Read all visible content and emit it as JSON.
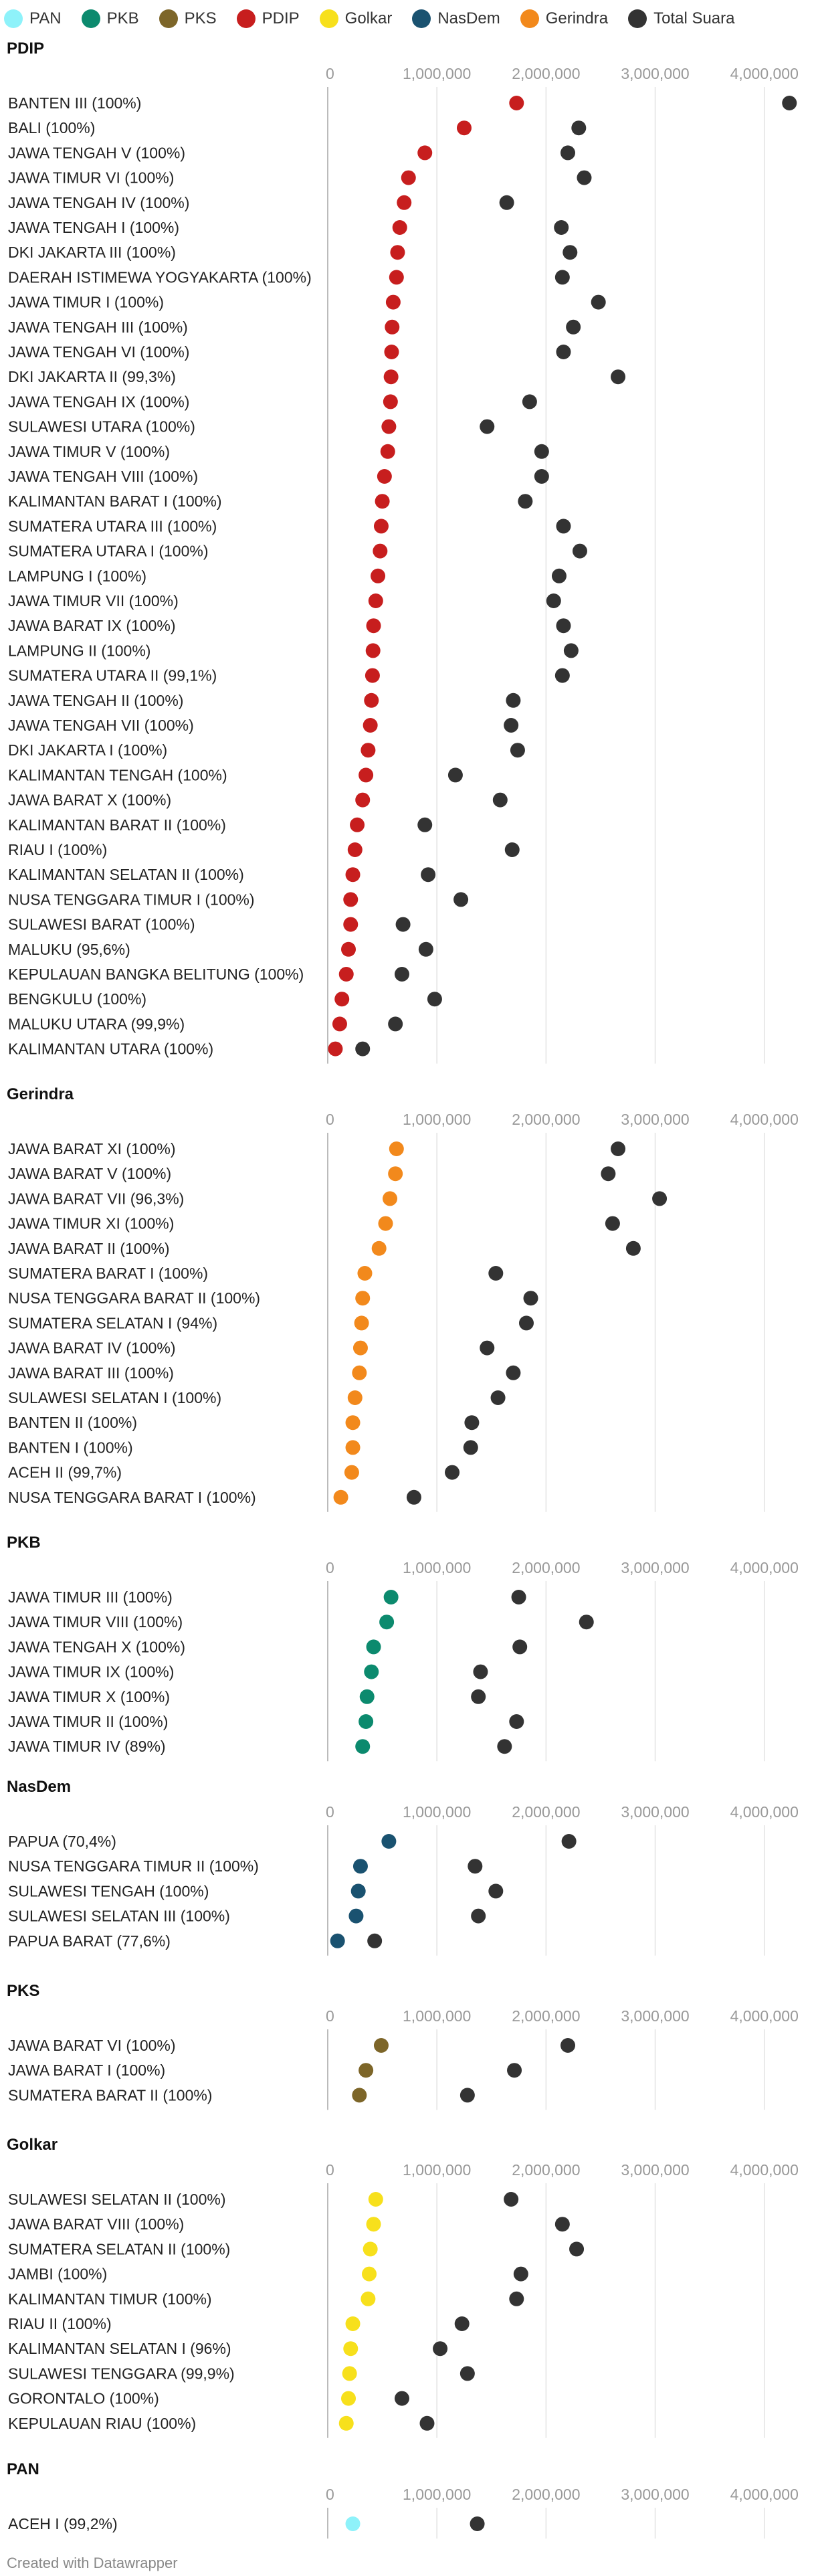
{
  "legend": [
    {
      "name": "PAN",
      "color": "#8ef2fa"
    },
    {
      "name": "PKB",
      "color": "#0c8a6e"
    },
    {
      "name": "PKS",
      "color": "#7d6629"
    },
    {
      "name": "PDIP",
      "color": "#c71e1e"
    },
    {
      "name": "Golkar",
      "color": "#f7e01c"
    },
    {
      "name": "NasDem",
      "color": "#1a5270"
    },
    {
      "name": "Gerindra",
      "color": "#f2891c"
    },
    {
      "name": "Total Suara",
      "color": "#333333"
    }
  ],
  "credit": "Created with Datawrapper",
  "chart_data": [
    {
      "type": "scatter",
      "title": "PDIP",
      "party_color": "#c71e1e",
      "xlim": [
        0,
        4400000
      ],
      "xticks": [
        0,
        1000000,
        2000000,
        3000000,
        4000000
      ],
      "xtick_labels": [
        "0",
        "1,000,000",
        "2,000,000",
        "3,000,000",
        "4,000,000"
      ],
      "rows": [
        {
          "label": "BANTEN III (100%)",
          "party": 1730000,
          "total": 4230000
        },
        {
          "label": "BALI (100%)",
          "party": 1250000,
          "total": 2300000
        },
        {
          "label": "JAWA TENGAH V (100%)",
          "party": 890000,
          "total": 2200000
        },
        {
          "label": "JAWA TIMUR VI (100%)",
          "party": 740000,
          "total": 2350000
        },
        {
          "label": "JAWA TENGAH IV (100%)",
          "party": 700000,
          "total": 1640000
        },
        {
          "label": "JAWA TENGAH I (100%)",
          "party": 660000,
          "total": 2140000
        },
        {
          "label": "DKI JAKARTA III (100%)",
          "party": 640000,
          "total": 2220000
        },
        {
          "label": "DAERAH ISTIMEWA YOGYAKARTA (100%)",
          "party": 630000,
          "total": 2150000
        },
        {
          "label": "JAWA TIMUR I (100%)",
          "party": 600000,
          "total": 2480000
        },
        {
          "label": "JAWA TENGAH III (100%)",
          "party": 590000,
          "total": 2250000
        },
        {
          "label": "JAWA TENGAH VI (100%)",
          "party": 585000,
          "total": 2160000
        },
        {
          "label": "DKI JAKARTA II (99,3%)",
          "party": 580000,
          "total": 2660000
        },
        {
          "label": "JAWA TENGAH IX (100%)",
          "party": 575000,
          "total": 1850000
        },
        {
          "label": "SULAWESI UTARA (100%)",
          "party": 560000,
          "total": 1460000
        },
        {
          "label": "JAWA TIMUR V (100%)",
          "party": 550000,
          "total": 1960000
        },
        {
          "label": "JAWA TENGAH VIII (100%)",
          "party": 520000,
          "total": 1960000
        },
        {
          "label": "KALIMANTAN BARAT I (100%)",
          "party": 500000,
          "total": 1810000
        },
        {
          "label": "SUMATERA UTARA III (100%)",
          "party": 490000,
          "total": 2160000
        },
        {
          "label": "SUMATERA UTARA I (100%)",
          "party": 480000,
          "total": 2310000
        },
        {
          "label": "LAMPUNG I (100%)",
          "party": 460000,
          "total": 2120000
        },
        {
          "label": "JAWA TIMUR VII (100%)",
          "party": 440000,
          "total": 2070000
        },
        {
          "label": "JAWA BARAT IX (100%)",
          "party": 420000,
          "total": 2160000
        },
        {
          "label": "LAMPUNG II (100%)",
          "party": 415000,
          "total": 2230000
        },
        {
          "label": "SUMATERA UTARA II (99,1%)",
          "party": 410000,
          "total": 2150000
        },
        {
          "label": "JAWA TENGAH II (100%)",
          "party": 400000,
          "total": 1700000
        },
        {
          "label": "JAWA TENGAH VII (100%)",
          "party": 390000,
          "total": 1680000
        },
        {
          "label": "DKI JAKARTA I (100%)",
          "party": 370000,
          "total": 1740000
        },
        {
          "label": "KALIMANTAN TENGAH (100%)",
          "party": 350000,
          "total": 1170000
        },
        {
          "label": "JAWA BARAT X (100%)",
          "party": 320000,
          "total": 1580000
        },
        {
          "label": "KALIMANTAN BARAT II (100%)",
          "party": 270000,
          "total": 890000
        },
        {
          "label": "RIAU I (100%)",
          "party": 250000,
          "total": 1690000
        },
        {
          "label": "KALIMANTAN SELATAN II (100%)",
          "party": 230000,
          "total": 920000
        },
        {
          "label": "NUSA TENGGARA TIMUR I (100%)",
          "party": 210000,
          "total": 1220000
        },
        {
          "label": "SULAWESI BARAT (100%)",
          "party": 210000,
          "total": 690000
        },
        {
          "label": "MALUKU (95,6%)",
          "party": 190000,
          "total": 900000
        },
        {
          "label": "KEPULAUAN BANGKA BELITUNG (100%)",
          "party": 170000,
          "total": 680000
        },
        {
          "label": "BENGKULU (100%)",
          "party": 130000,
          "total": 980000
        },
        {
          "label": "MALUKU UTARA (99,9%)",
          "party": 110000,
          "total": 620000
        },
        {
          "label": "KALIMANTAN UTARA (100%)",
          "party": 70000,
          "total": 320000
        }
      ]
    },
    {
      "type": "scatter",
      "title": "Gerindra",
      "party_color": "#f2891c",
      "xlim": [
        0,
        4400000
      ],
      "xticks": [
        0,
        1000000,
        2000000,
        3000000,
        4000000
      ],
      "xtick_labels": [
        "0",
        "1,000,000",
        "2,000,000",
        "3,000,000",
        "4,000,000"
      ],
      "rows": [
        {
          "label": "JAWA BARAT XI (100%)",
          "party": 630000,
          "total": 2660000
        },
        {
          "label": "JAWA BARAT V (100%)",
          "party": 620000,
          "total": 2570000
        },
        {
          "label": "JAWA BARAT VII (96,3%)",
          "party": 570000,
          "total": 3040000
        },
        {
          "label": "JAWA TIMUR XI (100%)",
          "party": 530000,
          "total": 2610000
        },
        {
          "label": "JAWA BARAT II (100%)",
          "party": 470000,
          "total": 2800000
        },
        {
          "label": "SUMATERA BARAT I (100%)",
          "party": 340000,
          "total": 1540000
        },
        {
          "label": "NUSA TENGGARA BARAT II (100%)",
          "party": 320000,
          "total": 1860000
        },
        {
          "label": "SUMATERA SELATAN I (94%)",
          "party": 310000,
          "total": 1820000
        },
        {
          "label": "JAWA BARAT IV (100%)",
          "party": 300000,
          "total": 1460000
        },
        {
          "label": "JAWA BARAT III (100%)",
          "party": 290000,
          "total": 1700000
        },
        {
          "label": "SULAWESI SELATAN I (100%)",
          "party": 250000,
          "total": 1560000
        },
        {
          "label": "BANTEN II (100%)",
          "party": 230000,
          "total": 1320000
        },
        {
          "label": "BANTEN I (100%)",
          "party": 230000,
          "total": 1310000
        },
        {
          "label": "ACEH II (99,7%)",
          "party": 220000,
          "total": 1140000
        },
        {
          "label": "NUSA TENGGARA BARAT I (100%)",
          "party": 120000,
          "total": 790000
        }
      ]
    },
    {
      "type": "scatter",
      "title": "PKB",
      "party_color": "#0c8a6e",
      "xlim": [
        0,
        4400000
      ],
      "xticks": [
        0,
        1000000,
        2000000,
        3000000,
        4000000
      ],
      "xtick_labels": [
        "0",
        "1,000,000",
        "2,000,000",
        "3,000,000",
        "4,000,000"
      ],
      "rows": [
        {
          "label": "JAWA TIMUR III (100%)",
          "party": 580000,
          "total": 1750000
        },
        {
          "label": "JAWA TIMUR VIII (100%)",
          "party": 540000,
          "total": 2370000
        },
        {
          "label": "JAWA TENGAH X (100%)",
          "party": 420000,
          "total": 1760000
        },
        {
          "label": "JAWA TIMUR IX (100%)",
          "party": 400000,
          "total": 1400000
        },
        {
          "label": "JAWA TIMUR X (100%)",
          "party": 360000,
          "total": 1380000
        },
        {
          "label": "JAWA TIMUR II (100%)",
          "party": 350000,
          "total": 1730000
        },
        {
          "label": "JAWA TIMUR IV (89%)",
          "party": 320000,
          "total": 1620000
        }
      ]
    },
    {
      "type": "scatter",
      "title": "NasDem",
      "party_color": "#1a5270",
      "xlim": [
        0,
        4400000
      ],
      "xticks": [
        0,
        1000000,
        2000000,
        3000000,
        4000000
      ],
      "xtick_labels": [
        "0",
        "1,000,000",
        "2,000,000",
        "3,000,000",
        "4,000,000"
      ],
      "rows": [
        {
          "label": "PAPUA (70,4%)",
          "party": 560000,
          "total": 2210000
        },
        {
          "label": "NUSA TENGGARA TIMUR II (100%)",
          "party": 300000,
          "total": 1350000
        },
        {
          "label": "SULAWESI TENGAH (100%)",
          "party": 280000,
          "total": 1540000
        },
        {
          "label": "SULAWESI SELATAN III (100%)",
          "party": 260000,
          "total": 1380000
        },
        {
          "label": "PAPUA BARAT (77,6%)",
          "party": 90000,
          "total": 430000
        }
      ]
    },
    {
      "type": "scatter",
      "title": "PKS",
      "party_color": "#7d6629",
      "xlim": [
        0,
        4400000
      ],
      "xticks": [
        0,
        1000000,
        2000000,
        3000000,
        4000000
      ],
      "xtick_labels": [
        "0",
        "1,000,000",
        "2,000,000",
        "3,000,000",
        "4,000,000"
      ],
      "rows": [
        {
          "label": "JAWA BARAT VI (100%)",
          "party": 490000,
          "total": 2200000
        },
        {
          "label": "JAWA BARAT I (100%)",
          "party": 350000,
          "total": 1710000
        },
        {
          "label": "SUMATERA BARAT II (100%)",
          "party": 290000,
          "total": 1280000
        }
      ]
    },
    {
      "type": "scatter",
      "title": "Golkar",
      "party_color": "#f7e01c",
      "xlim": [
        0,
        4400000
      ],
      "xticks": [
        0,
        1000000,
        2000000,
        3000000,
        4000000
      ],
      "xtick_labels": [
        "0",
        "1,000,000",
        "2,000,000",
        "3,000,000",
        "4,000,000"
      ],
      "rows": [
        {
          "label": "SULAWESI SELATAN II (100%)",
          "party": 440000,
          "total": 1680000
        },
        {
          "label": "JAWA BARAT VIII (100%)",
          "party": 420000,
          "total": 2150000
        },
        {
          "label": "SUMATERA SELATAN II (100%)",
          "party": 390000,
          "total": 2280000
        },
        {
          "label": "JAMBI (100%)",
          "party": 380000,
          "total": 1770000
        },
        {
          "label": "KALIMANTAN TIMUR (100%)",
          "party": 370000,
          "total": 1730000
        },
        {
          "label": "RIAU II (100%)",
          "party": 230000,
          "total": 1230000
        },
        {
          "label": "KALIMANTAN SELATAN I (96%)",
          "party": 210000,
          "total": 1030000
        },
        {
          "label": "SULAWESI TENGGARA (99,9%)",
          "party": 200000,
          "total": 1280000
        },
        {
          "label": "GORONTALO (100%)",
          "party": 190000,
          "total": 680000
        },
        {
          "label": "KEPULAUAN RIAU (100%)",
          "party": 170000,
          "total": 910000
        }
      ]
    },
    {
      "type": "scatter",
      "title": "PAN",
      "party_color": "#8ef2fa",
      "xlim": [
        0,
        4400000
      ],
      "xticks": [
        0,
        1000000,
        2000000,
        3000000,
        4000000
      ],
      "xtick_labels": [
        "0",
        "1,000,000",
        "2,000,000",
        "3,000,000",
        "4,000,000"
      ],
      "rows": [
        {
          "label": "ACEH I (99,2%)",
          "party": 230000,
          "total": 1370000
        }
      ]
    }
  ]
}
